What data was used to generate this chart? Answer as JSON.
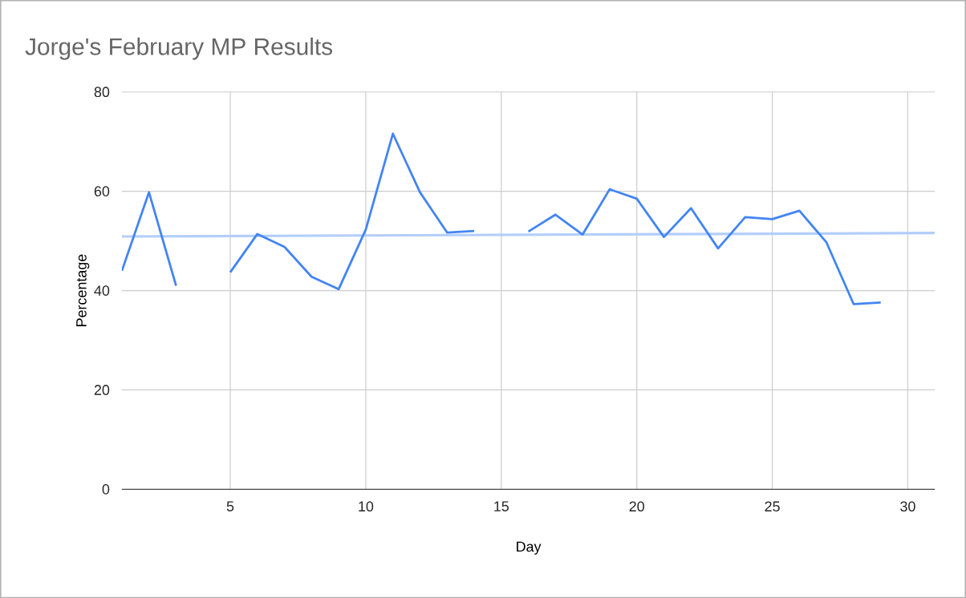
{
  "chart_data": {
    "type": "line",
    "title": "Jorge's February MP Results",
    "xlabel": "Day",
    "ylabel": "Percentage",
    "x": [
      1,
      2,
      3,
      4,
      5,
      6,
      7,
      8,
      9,
      10,
      11,
      12,
      13,
      14,
      15,
      16,
      17,
      18,
      19,
      20,
      21,
      22,
      23,
      24,
      25,
      26,
      27,
      28,
      29
    ],
    "series": [
      {
        "color": "#4285f4",
        "values": [
          44,
          59.8,
          41,
          null,
          43.7,
          51.4,
          48.8,
          42.8,
          40.3,
          52.3,
          71.6,
          59.8,
          51.7,
          52,
          null,
          51.9,
          55.3,
          51.3,
          60.4,
          58.5,
          50.8,
          56.6,
          48.5,
          54.8,
          54.4,
          56.1,
          49.7,
          37.3,
          37.6
        ]
      },
      {
        "type": "line",
        "color": "#b3cefb",
        "x": [
          1,
          31
        ],
        "values": [
          50.9,
          51.6
        ]
      }
    ],
    "xlim": [
      1,
      31
    ],
    "ylim": [
      0,
      80
    ],
    "xticks": [
      5,
      10,
      15,
      20,
      25,
      30
    ],
    "yticks": [
      0,
      20,
      40,
      60,
      80
    ],
    "grid": true
  }
}
